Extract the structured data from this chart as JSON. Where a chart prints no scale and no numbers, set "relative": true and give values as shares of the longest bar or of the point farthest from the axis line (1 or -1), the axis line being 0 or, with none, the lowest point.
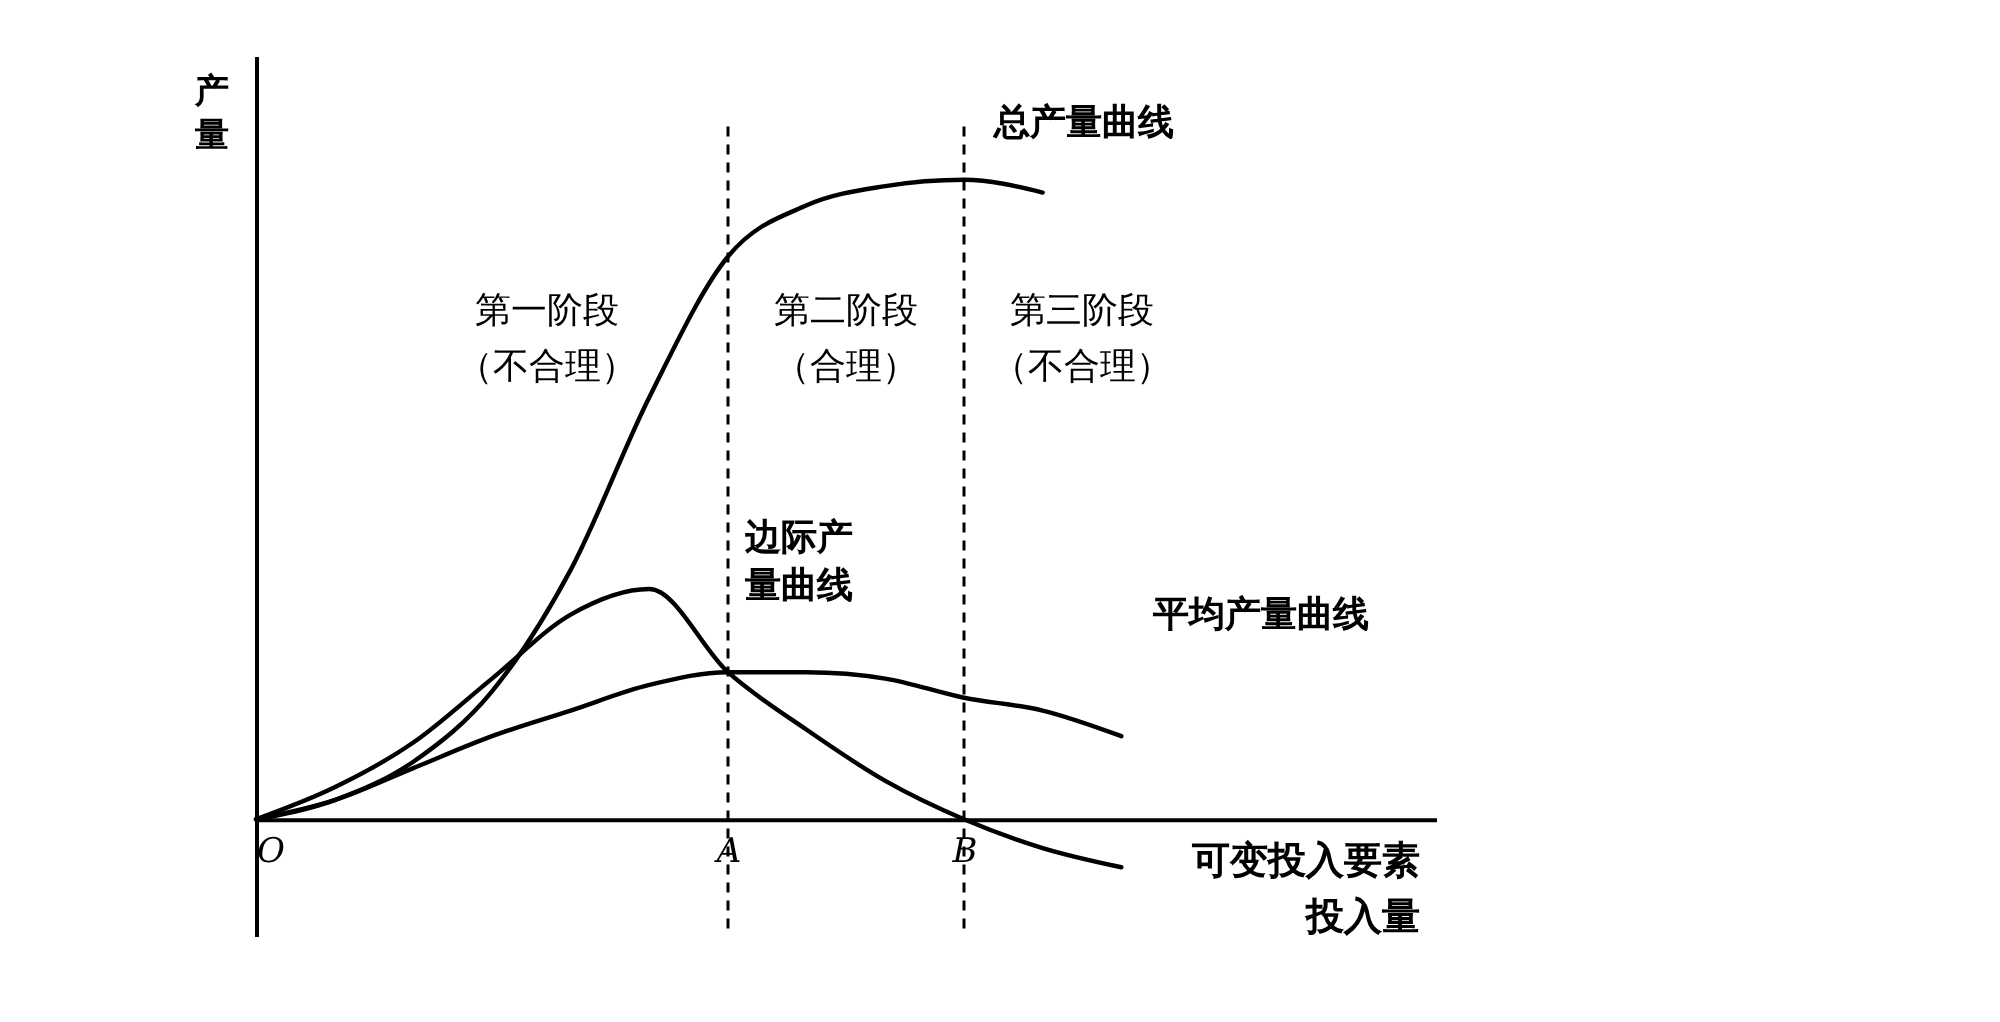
{
  "chart_data": {
    "type": "line",
    "relative": true,
    "ylabel": "产量",
    "xlabel": "可变投入要素投入量",
    "categories": [
      "O",
      null,
      null,
      null,
      null,
      null,
      "A",
      null,
      null,
      "B",
      null,
      null,
      null,
      null,
      null,
      null
    ],
    "ref_lines": [
      {
        "axis": "x",
        "value": "A",
        "line_style": "dashed"
      },
      {
        "axis": "x",
        "value": "B",
        "line_style": "dashed"
      }
    ],
    "annotations": [
      "第一阶段（不合理）",
      "第二阶段（合理）",
      "第三阶段（不合理）"
    ],
    "series": [
      {
        "name": "总产量曲线",
        "color": "#000000",
        "values": [
          0,
          0.03,
          0.09,
          0.2,
          0.39,
          0.66,
          0.88,
          0.96,
          0.99,
          1.0,
          0.98,
          null,
          null,
          null,
          null,
          null
        ]
      },
      {
        "name": "边际产量曲线",
        "color": "#000000",
        "values": [
          0,
          0.05,
          0.12,
          0.22,
          0.32,
          0.36,
          0.23,
          0.14,
          0.06,
          0,
          -0.045,
          -0.075,
          null,
          null,
          null,
          null
        ]
      },
      {
        "name": "平均产量曲线",
        "color": "#000000",
        "values": [
          0,
          0.03,
          0.08,
          0.13,
          0.17,
          0.21,
          0.23,
          0.23,
          0.22,
          0.19,
          0.17,
          0.13,
          null,
          null,
          null,
          null
        ]
      }
    ],
    "grid": false,
    "marker": "none",
    "line_style": "solid"
  }
}
